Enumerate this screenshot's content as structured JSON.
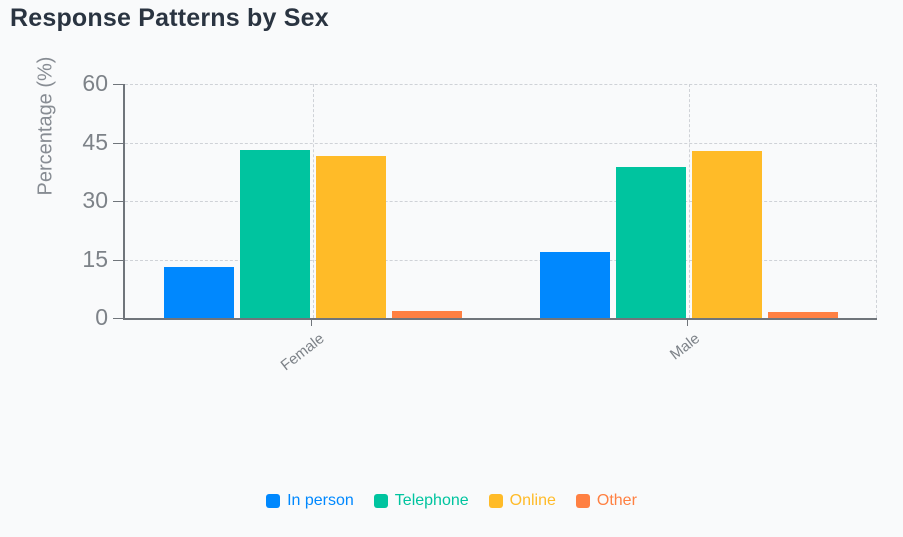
{
  "chart_data": {
    "type": "bar",
    "title": "Response Patterns by Sex",
    "xlabel": "",
    "ylabel": "Percentage (%)",
    "categories": [
      "Female",
      "Male"
    ],
    "series": [
      {
        "name": "In person",
        "color": "#0088FE",
        "values": [
          13.2,
          16.8
        ]
      },
      {
        "name": "Telephone",
        "color": "#00C49F",
        "values": [
          43.2,
          38.8
        ]
      },
      {
        "name": "Online",
        "color": "#FFBB28",
        "values": [
          41.6,
          42.9
        ]
      },
      {
        "name": "Other",
        "color": "#FF8042",
        "values": [
          1.9,
          1.5
        ]
      }
    ],
    "ylim": [
      0,
      60
    ],
    "yticks": [
      0,
      15,
      30,
      45,
      60
    ],
    "grid": true,
    "legend_position": "bottom"
  },
  "colors": {
    "background": "#f9fafb",
    "title_text": "#2a3441",
    "axis_line": "#70757b",
    "gridline": "#cfd2d7",
    "tick_text": "#7d8288"
  }
}
